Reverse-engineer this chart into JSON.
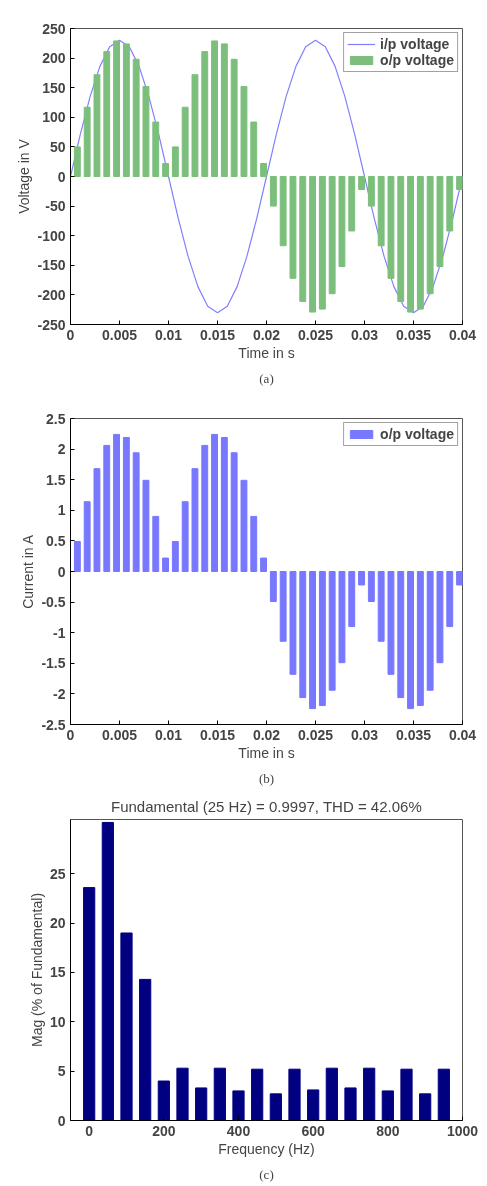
{
  "chart_data": [
    {
      "type": "line",
      "xlabel": "Time in s",
      "ylabel": "Voltage in V",
      "annotations": [
        "(a)"
      ],
      "legend": "top right",
      "xlim": [
        0,
        0.04
      ],
      "ylim": [
        -250,
        250
      ],
      "xticks": [
        0,
        0.005,
        0.01,
        0.015,
        0.02,
        0.025,
        0.03,
        0.035,
        0.04
      ],
      "yticks": [
        -250,
        -200,
        -150,
        -100,
        -50,
        0,
        50,
        100,
        150,
        200,
        250
      ],
      "series": [
        {
          "name": "i/p voltage",
          "type": "line",
          "color": "#8080ff",
          "x": [
            0,
            0.001,
            0.002,
            0.003,
            0.004,
            0.005,
            0.006,
            0.007,
            0.008,
            0.009,
            0.01,
            0.011,
            0.012,
            0.013,
            0.014,
            0.015,
            0.016,
            0.017,
            0.018,
            0.019,
            0.02,
            0.021,
            0.022,
            0.023,
            0.024,
            0.025,
            0.026,
            0.027,
            0.028,
            0.029,
            0.03,
            0.031,
            0.032,
            0.033,
            0.034,
            0.035,
            0.036,
            0.037,
            0.038,
            0.039,
            0.04
          ],
          "values": [
            0,
            71,
            135,
            186,
            219,
            230,
            219,
            186,
            135,
            71,
            0,
            -71,
            -135,
            -186,
            -219,
            -230,
            -219,
            -186,
            -135,
            -71,
            0,
            71,
            135,
            186,
            219,
            230,
            219,
            186,
            135,
            71,
            0,
            -71,
            -135,
            -186,
            -219,
            -230,
            -219,
            -186,
            -135,
            -71,
            0
          ]
        },
        {
          "name": "o/p voltage",
          "type": "bar",
          "color": "#7cbf7c",
          "x": [
            0.0007,
            0.0017,
            0.0027,
            0.0037,
            0.0047,
            0.0057,
            0.0067,
            0.0077,
            0.0087,
            0.0097,
            0.0107,
            0.0117,
            0.0127,
            0.0137,
            0.0147,
            0.0157,
            0.0167,
            0.0177,
            0.0187,
            0.0197,
            0.0207,
            0.0217,
            0.0227,
            0.0237,
            0.0247,
            0.0257,
            0.0267,
            0.0277,
            0.0287,
            0.0297,
            0.0307,
            0.0317,
            0.0327,
            0.0337,
            0.0347,
            0.0357,
            0.0367,
            0.0377,
            0.0387,
            0.0397
          ],
          "values": [
            50,
            117,
            172,
            211,
            229,
            224,
            198,
            152,
            92,
            22,
            50,
            117,
            172,
            211,
            229,
            224,
            198,
            152,
            92,
            22,
            -50,
            -117,
            -172,
            -211,
            -229,
            -224,
            -198,
            -152,
            -92,
            -22,
            -50,
            -117,
            -172,
            -211,
            -229,
            -224,
            -198,
            -152,
            -92,
            -22
          ]
        }
      ]
    },
    {
      "type": "bar",
      "xlabel": "Time in s",
      "ylabel": "Current in A",
      "annotations": [
        "(b)"
      ],
      "legend": "top right",
      "xlim": [
        0,
        0.04
      ],
      "ylim": [
        -2.5,
        2.5
      ],
      "xticks": [
        0,
        0.005,
        0.01,
        0.015,
        0.02,
        0.025,
        0.03,
        0.035,
        0.04
      ],
      "yticks": [
        -2.5,
        -2,
        -1.5,
        -1,
        -0.5,
        0,
        0.5,
        1,
        1.5,
        2,
        2.5
      ],
      "series": [
        {
          "name": "o/p voltage",
          "color": "#7878ff",
          "x": [
            0.0007,
            0.0017,
            0.0027,
            0.0037,
            0.0047,
            0.0057,
            0.0067,
            0.0077,
            0.0087,
            0.0097,
            0.0107,
            0.0117,
            0.0127,
            0.0137,
            0.0147,
            0.0157,
            0.0167,
            0.0177,
            0.0187,
            0.0197,
            0.0207,
            0.0217,
            0.0227,
            0.0237,
            0.0247,
            0.0257,
            0.0267,
            0.0277,
            0.0287,
            0.0297,
            0.0307,
            0.0317,
            0.0327,
            0.0337,
            0.0347,
            0.0357,
            0.0367,
            0.0377,
            0.0387,
            0.0397
          ],
          "values": [
            0.49,
            1.14,
            1.68,
            2.06,
            2.24,
            2.19,
            1.94,
            1.49,
            0.9,
            0.22,
            0.49,
            1.14,
            1.68,
            2.06,
            2.24,
            2.19,
            1.94,
            1.49,
            0.9,
            0.22,
            -0.49,
            -1.14,
            -1.68,
            -2.06,
            -2.24,
            -2.19,
            -1.94,
            -1.49,
            -0.9,
            -0.22,
            -0.49,
            -1.14,
            -1.68,
            -2.06,
            -2.24,
            -2.19,
            -1.94,
            -1.49,
            -0.9,
            -0.22
          ]
        }
      ]
    },
    {
      "type": "bar",
      "title": "Fundamental (25 Hz) = 0.9997, THD = 42.06%",
      "xlabel": "Frequency (Hz)",
      "ylabel": "Mag (% of Fundamental)",
      "annotations": [
        "(c)"
      ],
      "xlim": [
        -50,
        1000
      ],
      "ylim": [
        0,
        30.5
      ],
      "xticks": [
        0,
        200,
        400,
        600,
        800,
        1000
      ],
      "yticks": [
        0,
        5,
        10,
        15,
        20,
        25
      ],
      "x": [
        0,
        50,
        100,
        150,
        200,
        250,
        300,
        350,
        400,
        450,
        500,
        550,
        600,
        650,
        700,
        750,
        800,
        850,
        900,
        950
      ],
      "color": "#000080",
      "values": [
        23.6,
        30.2,
        19.0,
        14.3,
        4.0,
        5.3,
        3.3,
        5.3,
        3.0,
        5.2,
        2.7,
        5.2,
        3.1,
        5.3,
        3.3,
        5.3,
        3.0,
        5.2,
        2.7,
        5.2
      ]
    }
  ]
}
